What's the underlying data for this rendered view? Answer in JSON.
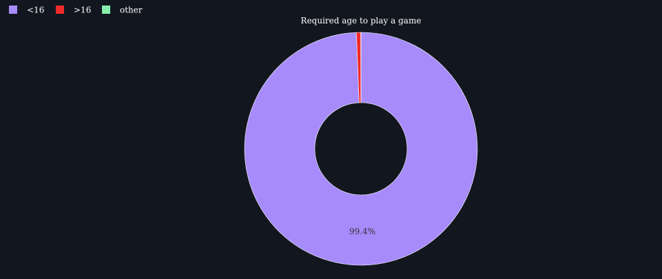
{
  "colors": {
    "background": "#12171f",
    "text": "#ffffff",
    "slice_border": "#ffffff"
  },
  "chart_data": {
    "type": "pie",
    "subtype": "donut",
    "title": "Required age to play a game",
    "categories": [
      "<16",
      ">16",
      "other"
    ],
    "values": [
      99.4,
      0.6,
      0.03
    ],
    "colors": [
      "#a78bfa",
      "#ef2b2b",
      "#86efac"
    ],
    "data_labels": [
      "99.4%",
      "",
      ""
    ],
    "legend": {
      "placement": "top-left",
      "orientation": "horizontal"
    }
  }
}
